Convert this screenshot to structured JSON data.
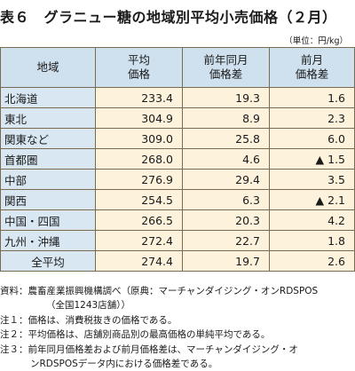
{
  "title": "表６　グラニュー糖の地域別平均小売価格（２月）",
  "unit": "（単位：円/kg）",
  "headers": {
    "region": "地域",
    "avg_price": "平均\n価格",
    "yoy_diff": "前年同月\n価格差",
    "mom_diff": "前月\n価格差"
  },
  "rows": [
    {
      "region": "北海道",
      "avg": "233.4",
      "yoy": "19.3",
      "mom": "1.6"
    },
    {
      "region": "東北",
      "avg": "304.9",
      "yoy": "8.9",
      "mom": "2.3"
    },
    {
      "region": "関東など",
      "avg": "309.0",
      "yoy": "25.8",
      "mom": "6.0"
    },
    {
      "region": "首都圏",
      "avg": "268.0",
      "yoy": "4.6",
      "mom": "▲ 1.5"
    },
    {
      "region": "中部",
      "avg": "276.9",
      "yoy": "29.4",
      "mom": "3.5"
    },
    {
      "region": "関西",
      "avg": "254.5",
      "yoy": "6.3",
      "mom": "▲ 2.1"
    },
    {
      "region": "中国・四国",
      "avg": "266.5",
      "yoy": "20.3",
      "mom": "4.2"
    },
    {
      "region": "九州・沖縄",
      "avg": "272.4",
      "yoy": "22.7",
      "mom": "1.8"
    },
    {
      "region": "全平均",
      "avg": "274.4",
      "yoy": "19.7",
      "mom": "2.6"
    }
  ],
  "notes": {
    "source_1": "資料：農畜産業振興機構調べ（原典：マーチャンダイジング・オンRDSPOS",
    "source_2": "（全国1243店舗））",
    "note1": "注１：価格は、消費税抜きの価格である。",
    "note2": "注２：平均価格は、店舗別商品別の最高価格の単純平均である。",
    "note3_1": "注３：前年同月価格差および前月価格差は、マーチャンダイジング・オ",
    "note3_2": "ンRDSPOSデータ内における価格差である。"
  }
}
